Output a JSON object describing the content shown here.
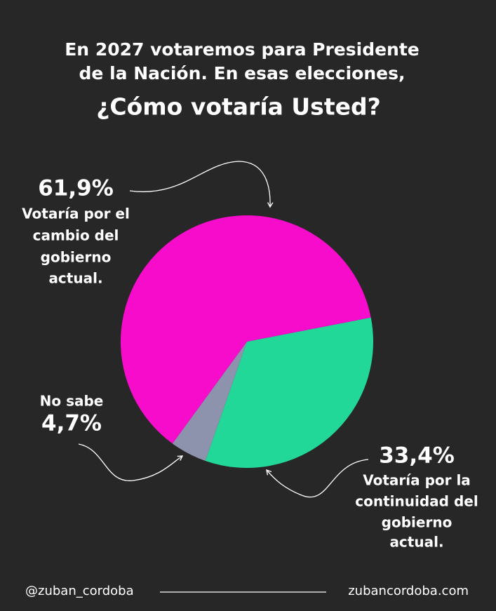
{
  "chart_data": {
    "type": "pie",
    "title": [
      "En 2027 votaremos para Presidente",
      "de la Nación. En esas elecciones,",
      "¿Cómo votaría Usted?"
    ],
    "categories": [
      [
        "Votaría por la",
        "continuidad del",
        "gobierno",
        "actual."
      ],
      [
        "No sabe"
      ],
      [
        "Votaría por el",
        "cambio del",
        "gobierno",
        "actual."
      ]
    ],
    "values": [
      33.4,
      4.7,
      61.9
    ],
    "value_labels": [
      "33,4%",
      "4,7%",
      "61,9%"
    ],
    "colors": [
      "#22d898",
      "#8e93ad",
      "#f80ccb"
    ],
    "footer": {
      "left": "@zuban_cordoba",
      "right": "zubancordoba.com"
    }
  }
}
